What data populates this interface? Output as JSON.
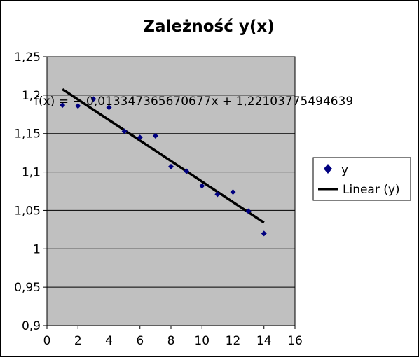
{
  "chart_data": {
    "type": "scatter",
    "title": "Zależność y(x)",
    "xlabel": "",
    "ylabel": "",
    "xlim": [
      0,
      16
    ],
    "ylim": [
      0.9,
      1.25
    ],
    "x_ticks": [
      0,
      2,
      4,
      6,
      8,
      10,
      12,
      14,
      16
    ],
    "x_tick_labels": [
      "0",
      "2",
      "4",
      "6",
      "8",
      "10",
      "12",
      "14",
      "16"
    ],
    "y_ticks": [
      0.9,
      0.95,
      1.0,
      1.05,
      1.1,
      1.15,
      1.2,
      1.25
    ],
    "y_tick_labels": [
      "0,9",
      "0,95",
      "1",
      "1,05",
      "1,1",
      "1,15",
      "1,2",
      "1,25"
    ],
    "grid": "horizontal",
    "plot_background": "#c0c0c0",
    "legend_position": "right",
    "series": [
      {
        "name": "y",
        "type": "scatter",
        "marker": "diamond",
        "color": "#000080",
        "x": [
          1,
          2,
          3,
          4,
          5,
          6,
          7,
          8,
          9,
          10,
          11,
          12,
          13,
          14
        ],
        "y": [
          1.187,
          1.186,
          1.195,
          1.184,
          1.153,
          1.145,
          1.147,
          1.107,
          1.101,
          1.082,
          1.071,
          1.074,
          1.049,
          1.02
        ]
      }
    ],
    "trendline": {
      "name": "Linear (y)",
      "type": "linear",
      "color": "#000000",
      "slope": -0.013347365670677,
      "intercept": 1.22103775494639,
      "x_range": [
        1,
        14
      ],
      "equation": "f(x) = − 0,013347365670677x + 1,22103775494639"
    },
    "legend": [
      {
        "label": "y",
        "symbol": "diamond"
      },
      {
        "label": "Linear (y)",
        "symbol": "line"
      }
    ]
  }
}
